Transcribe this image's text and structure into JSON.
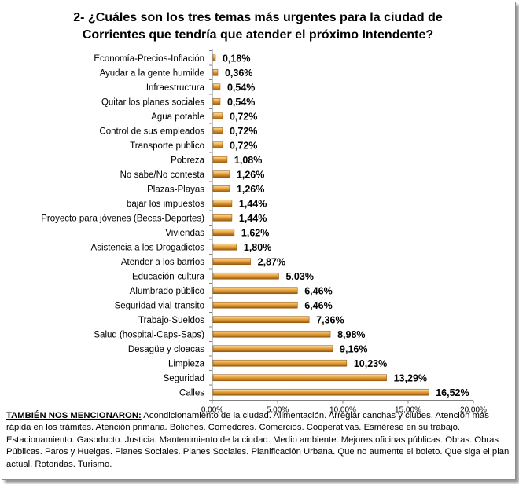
{
  "title_line1": "2- ¿Cuáles son los  tres temas más urgentes para la ciudad de",
  "title_line2": "Corrientes que tendría que atender el próximo Intendente?",
  "bar_color": "#e8a33a",
  "bar_dark": "#9a5a10",
  "bar_light": "#fbe1a8",
  "chart_data": {
    "type": "bar",
    "orientation": "horizontal",
    "categories": [
      "Economía-Precios-Inflación",
      "Ayudar a la gente humilde",
      "Infraestructura",
      "Quitar los planes sociales",
      "Agua potable",
      "Control de sus empleados",
      "Transporte publico",
      "Pobreza",
      "No sabe/No contesta",
      "Plazas-Playas",
      "bajar los impuestos",
      "Proyecto para jóvenes (Becas-Deportes)",
      "Viviendas",
      "Asistencia a los Drogadictos",
      "Atender a los barrios",
      "Educación-cultura",
      "Alumbrado público",
      "Seguridad vial-transito",
      "Trabajo-Sueldos",
      "Salud (hospital-Caps-Saps)",
      "Desagüe y cloacas",
      "Limpieza",
      "Seguridad",
      "Calles"
    ],
    "values": [
      0.18,
      0.36,
      0.54,
      0.54,
      0.72,
      0.72,
      0.72,
      1.08,
      1.26,
      1.26,
      1.44,
      1.44,
      1.62,
      1.8,
      2.87,
      5.03,
      6.46,
      6.46,
      7.36,
      8.98,
      9.16,
      10.23,
      13.29,
      16.52
    ],
    "value_labels": [
      "0,18%",
      "0,36%",
      "0,54%",
      "0,54%",
      "0,72%",
      "0,72%",
      "0,72%",
      "1,08%",
      "1,26%",
      "1,26%",
      "1,44%",
      "1,44%",
      "1,62%",
      "1,80%",
      "2,87%",
      "5,03%",
      "6,46%",
      "6,46%",
      "7,36%",
      "8,98%",
      "9,16%",
      "10,23%",
      "13,29%",
      "16,52%"
    ],
    "xlim": [
      0,
      20
    ],
    "xticks": [
      0,
      5,
      10,
      15,
      20
    ],
    "xtick_labels": [
      "0.00%",
      "5.00%",
      "10.00%",
      "15.00%",
      "20.00%"
    ]
  },
  "footnote": {
    "lead": "TAMBIÉN NOS MENCIONARON:",
    "text": " Acondicionamiento de la ciudad. Alimentación. Arreglar canchas y clubes. Atención más rápida en los trámites. Atención primaria. Boliches. Comedores. Comercios. Cooperativas. Esmérese en su trabajo. Estacionamiento. Gasoducto. Justicia. Mantenimiento de la ciudad. Medio ambiente. Mejores oficinas públicas. Obras. Obras Públicas. Paros y Huelgas. Planes Sociales. Planes Sociales. Planificación Urbana. Que no aumente el boleto. Que siga el plan actual. Rotondas. Turismo."
  }
}
